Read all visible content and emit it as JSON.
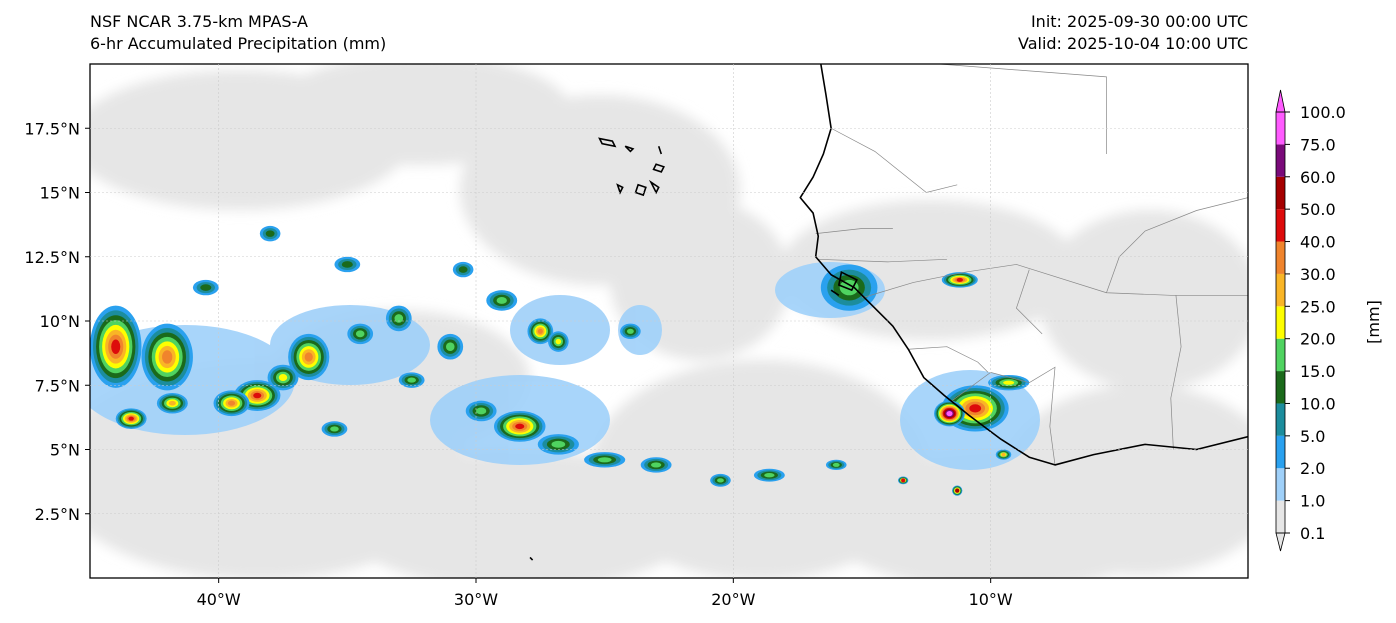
{
  "header": {
    "model": "NSF NCAR 3.75-km MPAS-A",
    "field": "6-hr Accumulated Precipitation (mm)",
    "init": "Init: 2025-09-30 00:00 UTC",
    "valid": "Valid: 2025-10-04 10:00 UTC"
  },
  "map": {
    "lon_range": [
      -45,
      0
    ],
    "lat_range": [
      0,
      20
    ],
    "x_ticks": [
      {
        "lon": -40,
        "label": "40°W"
      },
      {
        "lon": -30,
        "label": "30°W"
      },
      {
        "lon": -20,
        "label": "20°W"
      },
      {
        "lon": -10,
        "label": "10°W"
      }
    ],
    "y_ticks": [
      {
        "lat": 2.5,
        "label": "2.5°N"
      },
      {
        "lat": 5,
        "label": "5°N"
      },
      {
        "lat": 7.5,
        "label": "7.5°N"
      },
      {
        "lat": 10,
        "label": "10°N"
      },
      {
        "lat": 12.5,
        "label": "12.5°N"
      },
      {
        "lat": 15,
        "label": "15°N"
      },
      {
        "lat": 17.5,
        "label": "17.5°N"
      }
    ],
    "coastline": [
      [
        -16.6,
        20
      ],
      [
        -16.4,
        18.8
      ],
      [
        -16.2,
        17.5
      ],
      [
        -16.5,
        16.5
      ],
      [
        -16.9,
        15.6
      ],
      [
        -17.4,
        14.8
      ],
      [
        -16.9,
        14.2
      ],
      [
        -16.7,
        13.3
      ],
      [
        -16.8,
        12.5
      ],
      [
        -16.2,
        11.8
      ],
      [
        -15.3,
        11.3
      ],
      [
        -14.6,
        10.6
      ],
      [
        -13.8,
        9.8
      ],
      [
        -13.2,
        8.9
      ],
      [
        -12.6,
        7.8
      ],
      [
        -11.8,
        7.1
      ],
      [
        -10.8,
        6.3
      ],
      [
        -9.6,
        5.4
      ],
      [
        -8.5,
        4.7
      ],
      [
        -7.5,
        4.4
      ],
      [
        -6.0,
        4.8
      ],
      [
        -4.0,
        5.2
      ],
      [
        -2.0,
        5.0
      ],
      [
        0,
        5.5
      ]
    ],
    "borders": [
      [
        [
          -16.2,
          17.5
        ],
        [
          -14.5,
          16.6
        ],
        [
          -12.5,
          15.0
        ],
        [
          -11.3,
          15.3
        ]
      ],
      [
        [
          -12.0,
          20
        ],
        [
          -5.5,
          19.5
        ],
        [
          -5.5,
          16.5
        ]
      ],
      [
        [
          -16.8,
          13.4
        ],
        [
          -15.0,
          13.6
        ],
        [
          -13.8,
          13.6
        ]
      ],
      [
        [
          -16.7,
          12.4
        ],
        [
          -14.0,
          12.3
        ],
        [
          -11.7,
          12.4
        ]
      ],
      [
        [
          -15.0,
          10.9
        ],
        [
          -13.0,
          11.5
        ],
        [
          -11.0,
          11.9
        ],
        [
          -9.0,
          12.2
        ],
        [
          -5.5,
          11.1
        ],
        [
          -3.0,
          11.0
        ],
        [
          0,
          11.0
        ]
      ],
      [
        [
          -13.2,
          8.9
        ],
        [
          -11.7,
          9.0
        ],
        [
          -10.5,
          8.4
        ],
        [
          -10.1,
          8.0
        ]
      ],
      [
        [
          -11.5,
          6.9
        ],
        [
          -10.0,
          8.0
        ],
        [
          -8.5,
          7.6
        ],
        [
          -7.5,
          8.2
        ],
        [
          -7.7,
          5.9
        ],
        [
          -7.5,
          4.4
        ]
      ],
      [
        [
          -5.5,
          11.1
        ],
        [
          -5.0,
          12.5
        ],
        [
          -4.0,
          13.5
        ],
        [
          -2.0,
          14.3
        ],
        [
          0,
          14.8
        ]
      ],
      [
        [
          -2.8,
          11.0
        ],
        [
          -2.6,
          9.0
        ],
        [
          -3.0,
          7.0
        ],
        [
          -2.9,
          5.0
        ]
      ],
      [
        [
          -8.5,
          12.0
        ],
        [
          -9.0,
          10.5
        ],
        [
          -8.0,
          9.5
        ]
      ]
    ],
    "islands": [
      [
        [
          -25.2,
          17.1
        ],
        [
          -24.7,
          17.0
        ],
        [
          -24.6,
          16.8
        ],
        [
          -25.1,
          16.9
        ]
      ],
      [
        [
          -24.2,
          16.8
        ],
        [
          -23.9,
          16.7
        ],
        [
          -24.0,
          16.6
        ]
      ],
      [
        [
          -22.9,
          16.8
        ],
        [
          -22.8,
          16.5
        ]
      ],
      [
        [
          -23.0,
          16.1
        ],
        [
          -22.7,
          16.0
        ],
        [
          -22.8,
          15.8
        ],
        [
          -23.1,
          15.9
        ]
      ],
      [
        [
          -24.5,
          15.3
        ],
        [
          -24.3,
          15.2
        ],
        [
          -24.4,
          15.0
        ]
      ],
      [
        [
          -23.7,
          15.3
        ],
        [
          -23.4,
          15.2
        ],
        [
          -23.5,
          14.9
        ],
        [
          -23.8,
          15.0
        ]
      ],
      [
        [
          -23.2,
          15.4
        ],
        [
          -22.9,
          15.2
        ],
        [
          -23.0,
          15.0
        ]
      ],
      [
        [
          -15.8,
          11.9
        ],
        [
          -15.2,
          11.6
        ],
        [
          -15.4,
          11.2
        ],
        [
          -15.9,
          11.4
        ]
      ],
      [
        [
          -16.2,
          11.2
        ],
        [
          -15.9,
          11.0
        ]
      ],
      [
        [
          -27.9,
          0.8
        ],
        [
          -27.8,
          0.7
        ]
      ]
    ],
    "precip_cells": [
      {
        "lon": -44,
        "lat": 9.0,
        "rx": 1.0,
        "ry": 1.6,
        "v": 45
      },
      {
        "lon": -42,
        "lat": 8.6,
        "rx": 1.0,
        "ry": 1.3,
        "v": 35
      },
      {
        "lon": -43.4,
        "lat": 6.2,
        "rx": 0.6,
        "ry": 0.4,
        "v": 40
      },
      {
        "lon": -41.8,
        "lat": 6.8,
        "rx": 0.6,
        "ry": 0.4,
        "v": 28
      },
      {
        "lon": -38.5,
        "lat": 7.1,
        "rx": 0.9,
        "ry": 0.6,
        "v": 45
      },
      {
        "lon": -39.5,
        "lat": 6.8,
        "rx": 0.7,
        "ry": 0.5,
        "v": 35
      },
      {
        "lon": -36.5,
        "lat": 8.6,
        "rx": 0.8,
        "ry": 0.9,
        "v": 30
      },
      {
        "lon": -37.5,
        "lat": 7.8,
        "rx": 0.6,
        "ry": 0.5,
        "v": 22
      },
      {
        "lon": -34.5,
        "lat": 9.5,
        "rx": 0.5,
        "ry": 0.4,
        "v": 18
      },
      {
        "lon": -33,
        "lat": 10.1,
        "rx": 0.5,
        "ry": 0.5,
        "v": 18
      },
      {
        "lon": -31,
        "lat": 9.0,
        "rx": 0.5,
        "ry": 0.5,
        "v": 15
      },
      {
        "lon": -29,
        "lat": 10.8,
        "rx": 0.6,
        "ry": 0.4,
        "v": 15
      },
      {
        "lon": -27.5,
        "lat": 9.6,
        "rx": 0.5,
        "ry": 0.5,
        "v": 30
      },
      {
        "lon": -26.8,
        "lat": 9.2,
        "rx": 0.4,
        "ry": 0.4,
        "v": 20
      },
      {
        "lon": -28.3,
        "lat": 5.9,
        "rx": 1.0,
        "ry": 0.6,
        "v": 45
      },
      {
        "lon": -29.8,
        "lat": 6.5,
        "rx": 0.6,
        "ry": 0.4,
        "v": 15
      },
      {
        "lon": -26.8,
        "lat": 5.2,
        "rx": 0.8,
        "ry": 0.4,
        "v": 18
      },
      {
        "lon": -25,
        "lat": 4.6,
        "rx": 0.8,
        "ry": 0.3,
        "v": 15
      },
      {
        "lon": -23,
        "lat": 4.4,
        "rx": 0.6,
        "ry": 0.3,
        "v": 15
      },
      {
        "lon": -32.5,
        "lat": 7.7,
        "rx": 0.5,
        "ry": 0.3,
        "v": 15
      },
      {
        "lon": -35.5,
        "lat": 5.8,
        "rx": 0.5,
        "ry": 0.3,
        "v": 15
      },
      {
        "lon": -38,
        "lat": 13.4,
        "rx": 0.4,
        "ry": 0.3,
        "v": 12
      },
      {
        "lon": -35,
        "lat": 12.2,
        "rx": 0.5,
        "ry": 0.3,
        "v": 12
      },
      {
        "lon": -40.5,
        "lat": 11.3,
        "rx": 0.5,
        "ry": 0.3,
        "v": 12
      },
      {
        "lon": -30.5,
        "lat": 12.0,
        "rx": 0.4,
        "ry": 0.3,
        "v": 10
      },
      {
        "lon": -15.5,
        "lat": 11.3,
        "rx": 1.1,
        "ry": 0.9,
        "v": 18
      },
      {
        "lon": -11.2,
        "lat": 11.6,
        "rx": 0.7,
        "ry": 0.3,
        "v": 40
      },
      {
        "lon": -10.6,
        "lat": 6.6,
        "rx": 1.3,
        "ry": 0.9,
        "v": 40
      },
      {
        "lon": -11.6,
        "lat": 6.4,
        "rx": 0.6,
        "ry": 0.5,
        "v": 100
      },
      {
        "lon": -9.3,
        "lat": 7.6,
        "rx": 0.8,
        "ry": 0.3,
        "v": 20
      },
      {
        "lon": -13.4,
        "lat": 3.8,
        "rx": 0.2,
        "ry": 0.15,
        "v": 40
      },
      {
        "lon": -11.3,
        "lat": 3.4,
        "rx": 0.2,
        "ry": 0.2,
        "v": 50
      },
      {
        "lon": -9.5,
        "lat": 4.8,
        "rx": 0.3,
        "ry": 0.2,
        "v": 25
      },
      {
        "lon": -18.6,
        "lat": 4.0,
        "rx": 0.6,
        "ry": 0.25,
        "v": 15
      },
      {
        "lon": -16.0,
        "lat": 4.4,
        "rx": 0.4,
        "ry": 0.2,
        "v": 15
      },
      {
        "lon": -20.5,
        "lat": 3.8,
        "rx": 0.4,
        "ry": 0.25,
        "v": 15
      },
      {
        "lon": -24,
        "lat": 9.6,
        "rx": 0.4,
        "ry": 0.3,
        "v": 15
      }
    ]
  },
  "colorbar": {
    "unit_label": "[mm]",
    "levels": [
      "0.1",
      "1.0",
      "2.0",
      "5.0",
      "10.0",
      "15.0",
      "20.0",
      "25.0",
      "30.0",
      "40.0",
      "50.0",
      "60.0",
      "75.0",
      "100.0"
    ],
    "colors": [
      "#e6e6e6",
      "#9fd0f9",
      "#2aa1ef",
      "#1c8d9d",
      "#1b6a1b",
      "#4fd360",
      "#fefe00",
      "#f9b526",
      "#f0842c",
      "#dd0b0b",
      "#a50000",
      "#7a0a7a",
      "#ff5bff"
    ]
  }
}
